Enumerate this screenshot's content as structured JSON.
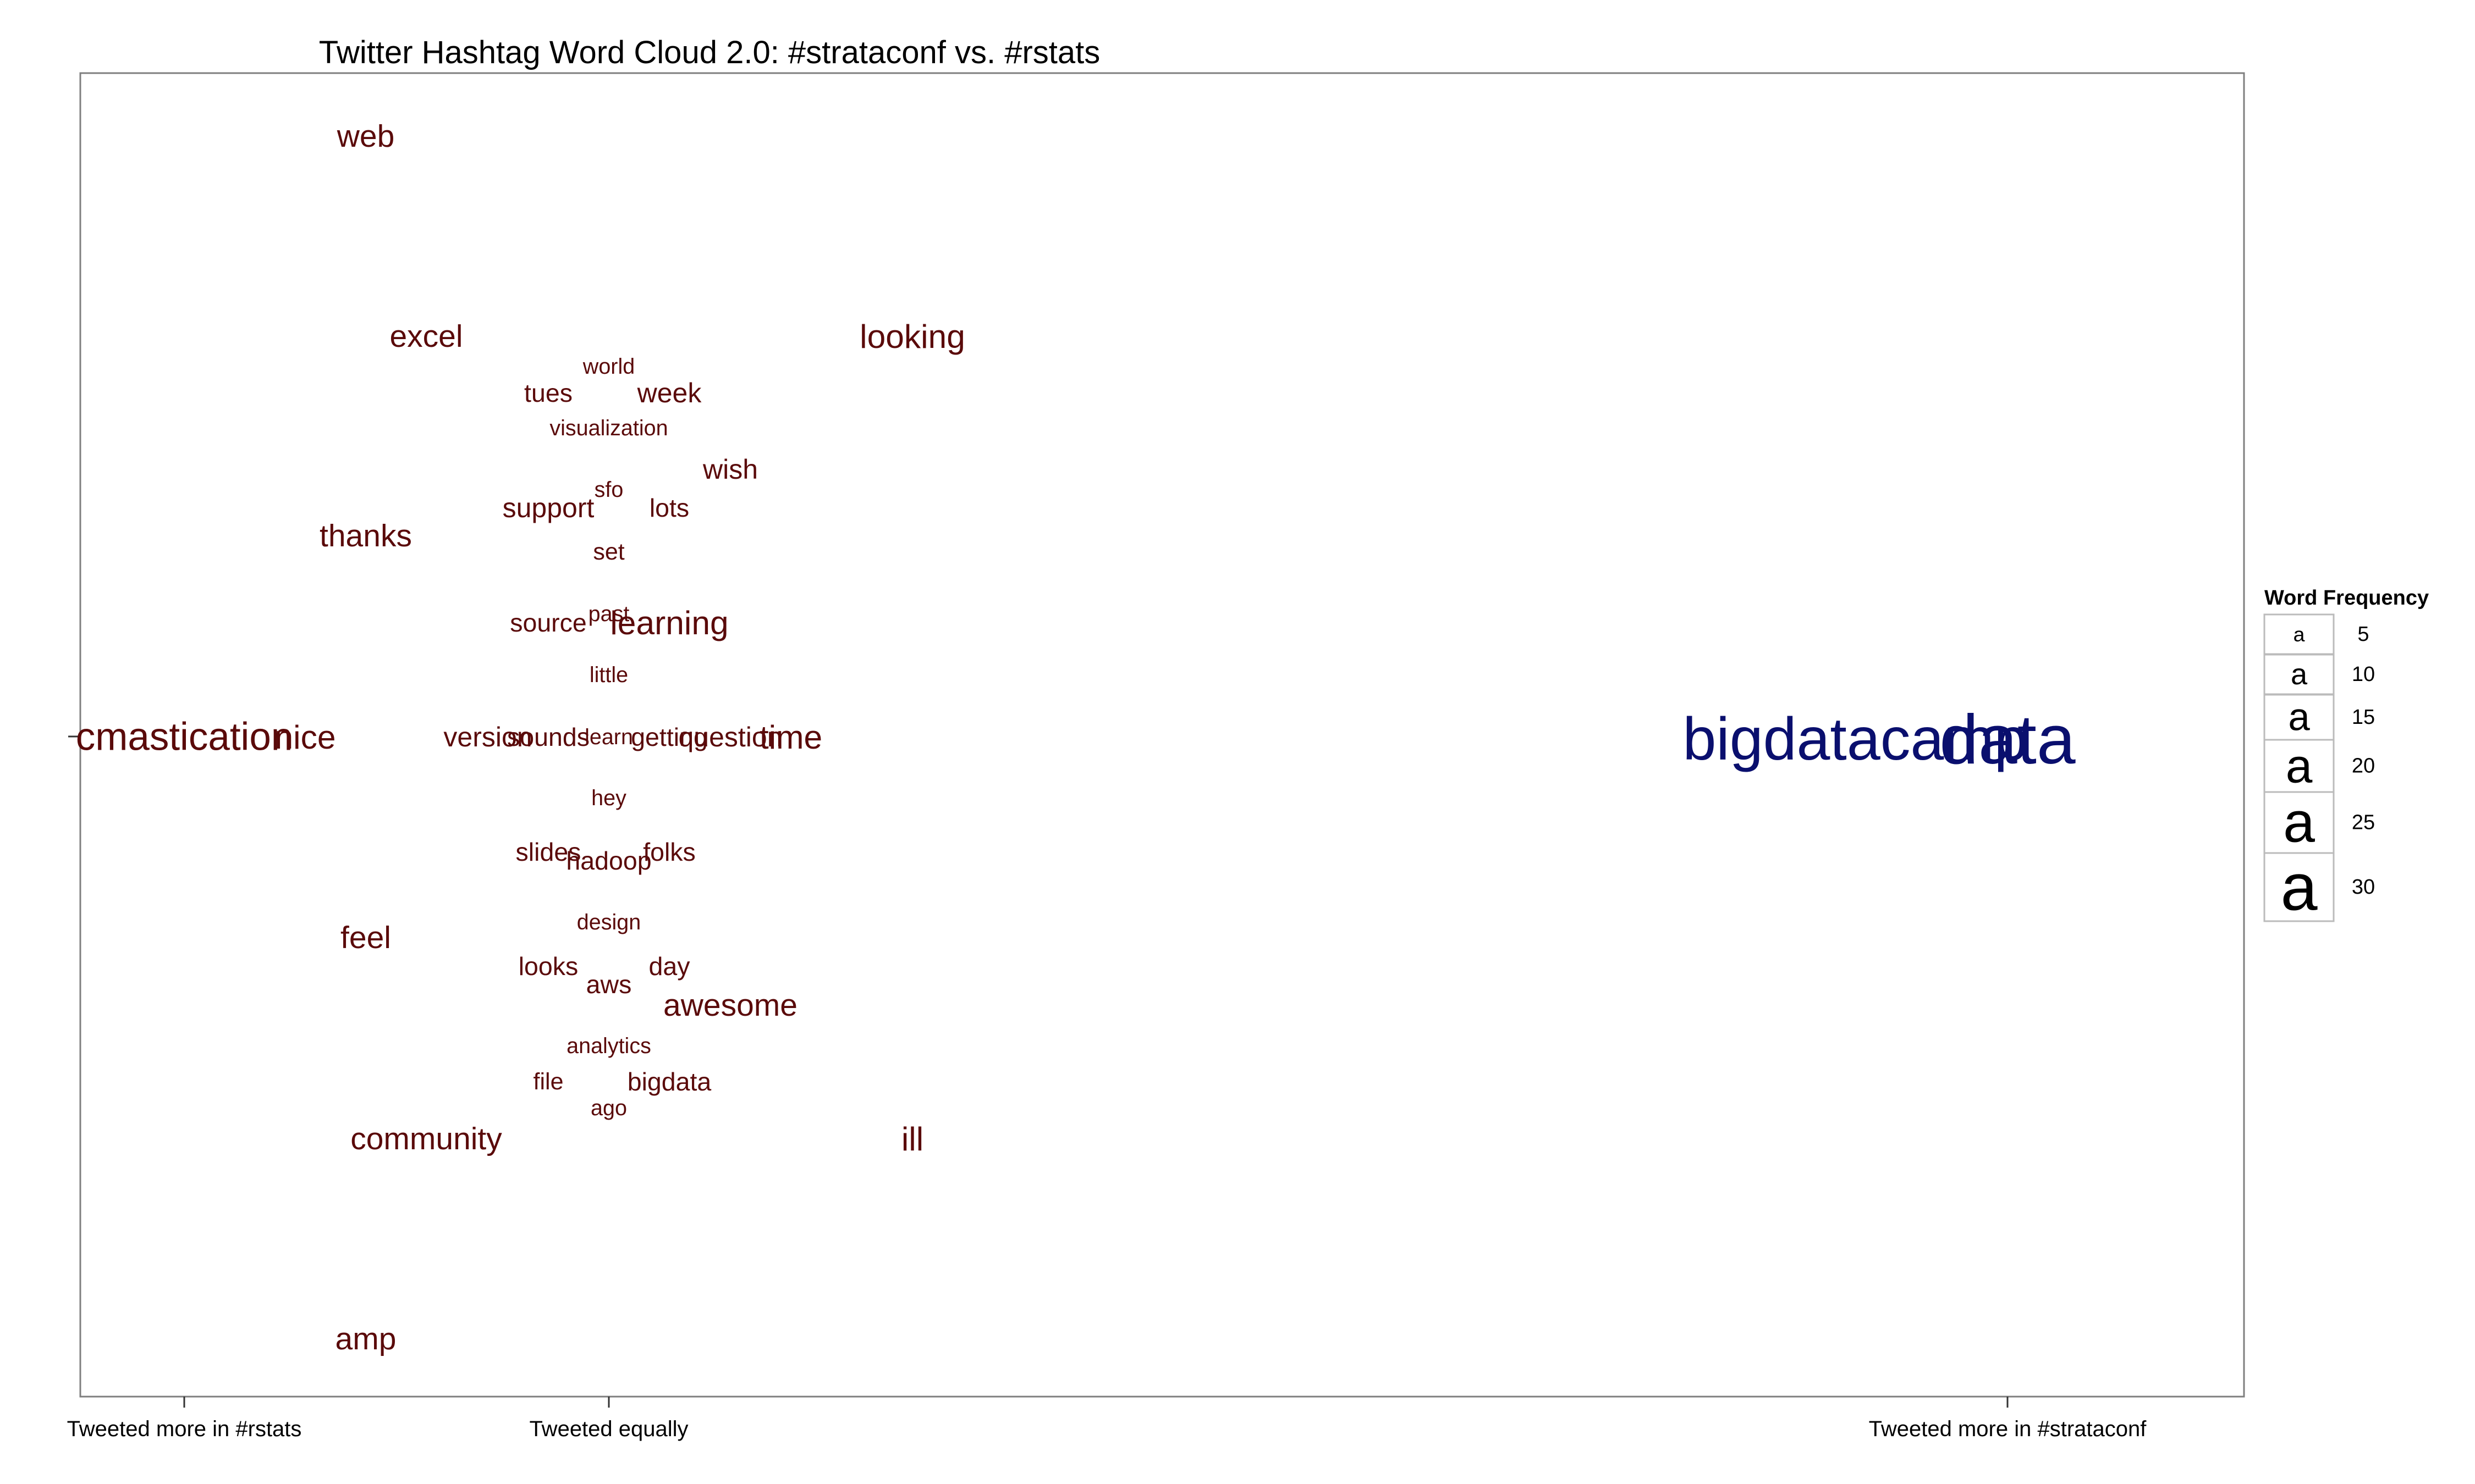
{
  "chart_data": {
    "type": "scatter",
    "title": "Twitter Hashtag Word Cloud 2.0: #strataconf vs. #rstats",
    "xlabel": "",
    "ylabel": "",
    "x_axis": {
      "tick_labels": [
        "Tweeted more in #rstats",
        "Tweeted equally",
        "Tweeted more in #strataconf"
      ]
    },
    "colors": {
      "rstats": "#5a0a0a",
      "strataconf": "#0a0f6e",
      "border": "#7f7f7f"
    },
    "grid": false,
    "legend": {
      "title": "Word Frequency",
      "position": "right",
      "glyph": "a",
      "values": [
        5,
        10,
        15,
        20,
        25,
        30
      ]
    },
    "words": [
      {
        "text": "web",
        "freq": 10,
        "side": "rstats"
      },
      {
        "text": "excel",
        "freq": 10,
        "side": "rstats"
      },
      {
        "text": "looking",
        "freq": 11,
        "side": "neutral"
      },
      {
        "text": "world",
        "freq": 5,
        "side": "neutral"
      },
      {
        "text": "tues",
        "freq": 7,
        "side": "neutral"
      },
      {
        "text": "week",
        "freq": 8,
        "side": "neutral"
      },
      {
        "text": "visualization",
        "freq": 5,
        "side": "neutral"
      },
      {
        "text": "wish",
        "freq": 8,
        "side": "neutral"
      },
      {
        "text": "sfo",
        "freq": 5,
        "side": "neutral"
      },
      {
        "text": "support",
        "freq": 8,
        "side": "neutral"
      },
      {
        "text": "lots",
        "freq": 7,
        "side": "neutral"
      },
      {
        "text": "thanks",
        "freq": 10,
        "side": "rstats"
      },
      {
        "text": "set",
        "freq": 6,
        "side": "neutral"
      },
      {
        "text": "source",
        "freq": 7,
        "side": "neutral"
      },
      {
        "text": "past",
        "freq": 5,
        "side": "neutral"
      },
      {
        "text": "learning",
        "freq": 11,
        "side": "neutral"
      },
      {
        "text": "little",
        "freq": 5,
        "side": "neutral"
      },
      {
        "text": "cmastication",
        "freq": 14,
        "side": "rstats"
      },
      {
        "text": "nice",
        "freq": 11,
        "side": "rstats"
      },
      {
        "text": "version",
        "freq": 8,
        "side": "neutral"
      },
      {
        "text": "sounds",
        "freq": 7,
        "side": "neutral"
      },
      {
        "text": "learn",
        "freq": 5,
        "side": "neutral"
      },
      {
        "text": "getting",
        "freq": 7,
        "side": "neutral"
      },
      {
        "text": "question",
        "freq": 8,
        "side": "neutral"
      },
      {
        "text": "time",
        "freq": 11,
        "side": "neutral"
      },
      {
        "text": "bigdatacamp",
        "freq": 25,
        "side": "strataconf"
      },
      {
        "text": "data",
        "freq": 30,
        "side": "strataconf"
      },
      {
        "text": "hey",
        "freq": 5,
        "side": "neutral"
      },
      {
        "text": "slides",
        "freq": 7,
        "side": "neutral"
      },
      {
        "text": "hadoop",
        "freq": 7,
        "side": "neutral"
      },
      {
        "text": "folks",
        "freq": 7,
        "side": "neutral"
      },
      {
        "text": "design",
        "freq": 5,
        "side": "neutral"
      },
      {
        "text": "feel",
        "freq": 10,
        "side": "rstats"
      },
      {
        "text": "looks",
        "freq": 7,
        "side": "neutral"
      },
      {
        "text": "day",
        "freq": 7,
        "side": "neutral"
      },
      {
        "text": "aws",
        "freq": 7,
        "side": "neutral"
      },
      {
        "text": "awesome",
        "freq": 10,
        "side": "neutral"
      },
      {
        "text": "analytics",
        "freq": 5,
        "side": "neutral"
      },
      {
        "text": "file",
        "freq": 6,
        "side": "neutral"
      },
      {
        "text": "bigdata",
        "freq": 7,
        "side": "neutral"
      },
      {
        "text": "ago",
        "freq": 5,
        "side": "neutral"
      },
      {
        "text": "community",
        "freq": 10,
        "side": "rstats"
      },
      {
        "text": "ill",
        "freq": 11,
        "side": "neutral"
      },
      {
        "text": "amp",
        "freq": 10,
        "side": "rstats"
      }
    ]
  }
}
